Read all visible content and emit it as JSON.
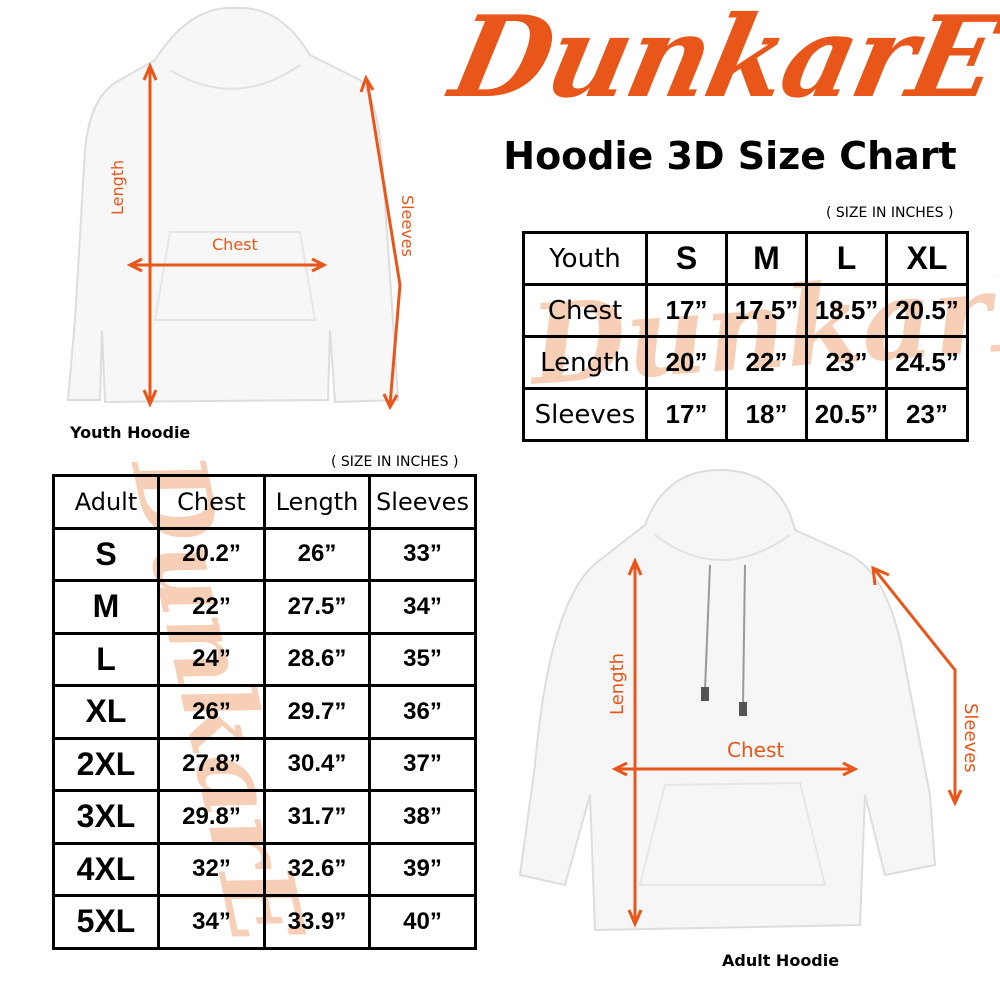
{
  "brand": {
    "logo": "DunkarE",
    "color": "#e8561a"
  },
  "title": "Hoodie 3D Size Chart",
  "youth": {
    "unit_note": "( SIZE IN INCHES )",
    "header": [
      "Youth",
      "S",
      "M",
      "L",
      "XL"
    ],
    "rows": [
      [
        "Chest",
        "17”",
        "17.5”",
        "18.5”",
        "20.5”"
      ],
      [
        "Length",
        "20”",
        "22”",
        "23”",
        "24.5”"
      ],
      [
        "Sleeves",
        "17”",
        "18”",
        "20.5”",
        "23”"
      ]
    ],
    "image_caption": "Youth Hoodie",
    "labels": {
      "length": "Length",
      "chest": "Chest",
      "sleeves": "Sleeves"
    }
  },
  "adult": {
    "unit_note": "( SIZE IN INCHES )",
    "header": [
      "Adult",
      "Chest",
      "Length",
      "Sleeves"
    ],
    "rows": [
      [
        "S",
        "20.2”",
        "26”",
        "33”"
      ],
      [
        "M",
        "22”",
        "27.5”",
        "34”"
      ],
      [
        "L",
        "24”",
        "28.6”",
        "35”"
      ],
      [
        "XL",
        "26”",
        "29.7”",
        "36”"
      ],
      [
        "2XL",
        "27.8”",
        "30.4”",
        "37”"
      ],
      [
        "3XL",
        "29.8”",
        "31.7”",
        "38”"
      ],
      [
        "4XL",
        "32”",
        "32.6”",
        "39”"
      ],
      [
        "5XL",
        "34”",
        "33.9”",
        "40”"
      ]
    ],
    "image_caption": "Adult Hoodie",
    "labels": {
      "length": "Length",
      "chest": "Chest",
      "sleeves": "Sleeves"
    }
  }
}
